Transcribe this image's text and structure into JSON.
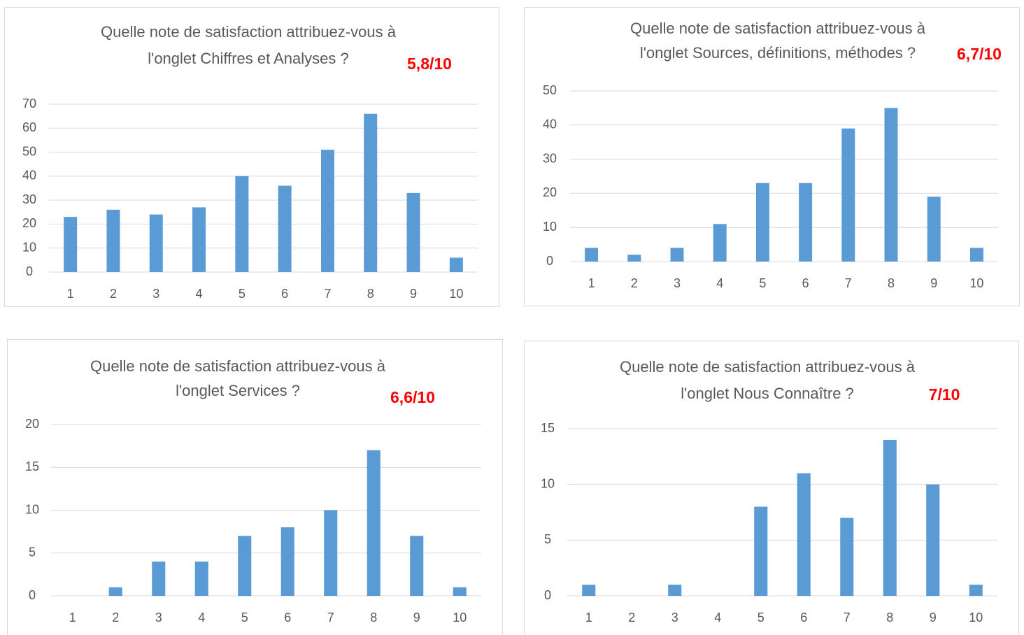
{
  "chart_data": [
    {
      "type": "bar",
      "title": [
        "Quelle note de satisfaction attribuez-vous à",
        "l'onglet Chiffres et Analyses ?"
      ],
      "annotation": "5,8/10",
      "categories": [
        "1",
        "2",
        "3",
        "4",
        "5",
        "6",
        "7",
        "8",
        "9",
        "10"
      ],
      "values": [
        23,
        26,
        24,
        27,
        40,
        36,
        51,
        66,
        33,
        6
      ],
      "color": "#5b9bd5",
      "ylim": [
        0,
        70
      ],
      "yticks": [
        0,
        10,
        20,
        30,
        40,
        50,
        60,
        70
      ],
      "grid": true
    },
    {
      "type": "bar",
      "title": [
        "Quelle note de satisfaction attribuez-vous à",
        "l'onglet Sources, définitions, méthodes ?"
      ],
      "annotation": "6,7/10",
      "categories": [
        "1",
        "2",
        "3",
        "4",
        "5",
        "6",
        "7",
        "8",
        "9",
        "10"
      ],
      "values": [
        4,
        2,
        4,
        11,
        23,
        23,
        39,
        45,
        19,
        4
      ],
      "color": "#5b9bd5",
      "ylim": [
        0,
        50
      ],
      "yticks": [
        0,
        10,
        20,
        30,
        40,
        50
      ],
      "grid": true
    },
    {
      "type": "bar",
      "title": [
        "Quelle note de satisfaction attribuez-vous à",
        "l'onglet Services ?"
      ],
      "annotation": "6,6/10",
      "categories": [
        "1",
        "2",
        "3",
        "4",
        "5",
        "6",
        "7",
        "8",
        "9",
        "10"
      ],
      "values": [
        0,
        1,
        4,
        4,
        7,
        8,
        10,
        17,
        7,
        1
      ],
      "color": "#5b9bd5",
      "ylim": [
        0,
        20
      ],
      "yticks": [
        0,
        5,
        10,
        15,
        20
      ],
      "grid": true
    },
    {
      "type": "bar",
      "title": [
        "Quelle note de satisfaction attribuez-vous à",
        "l'onglet Nous Connaître ?"
      ],
      "annotation": "7/10",
      "categories": [
        "1",
        "2",
        "3",
        "4",
        "5",
        "6",
        "7",
        "8",
        "9",
        "10"
      ],
      "values": [
        1,
        0,
        1,
        0,
        8,
        11,
        7,
        14,
        10,
        1
      ],
      "color": "#5b9bd5",
      "ylim": [
        0,
        15
      ],
      "yticks": [
        0,
        5,
        10,
        15
      ],
      "grid": true
    }
  ]
}
